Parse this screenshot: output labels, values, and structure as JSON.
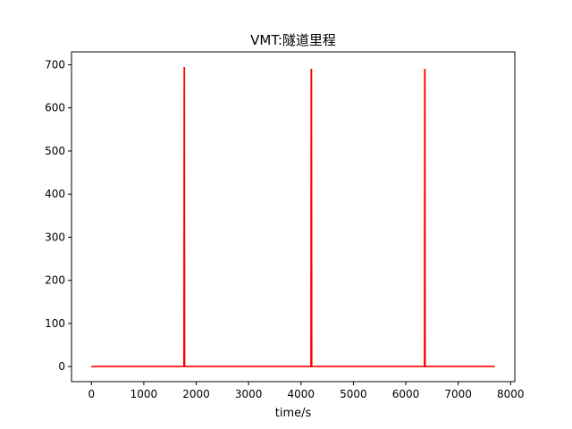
{
  "chart_data": {
    "type": "line",
    "title": "VMT:隧道里程",
    "xlabel": "time/s",
    "ylabel": "",
    "xlim": [
      -380,
      8080
    ],
    "ylim": [
      -35,
      730
    ],
    "xticks": [
      0,
      1000,
      2000,
      3000,
      4000,
      5000,
      6000,
      7000,
      8000
    ],
    "yticks": [
      0,
      100,
      200,
      300,
      400,
      500,
      600,
      700
    ],
    "grid": false,
    "legend": "none",
    "series": [
      {
        "color": "#ff0000",
        "x": [
          0,
          1765,
          1770,
          1775,
          1780,
          4190,
          4195,
          4200,
          4205,
          6355,
          6360,
          6365,
          6370,
          7700
        ],
        "y": [
          0,
          0,
          693,
          693,
          0,
          0,
          689,
          689,
          0,
          0,
          689,
          689,
          0,
          0
        ]
      }
    ]
  }
}
